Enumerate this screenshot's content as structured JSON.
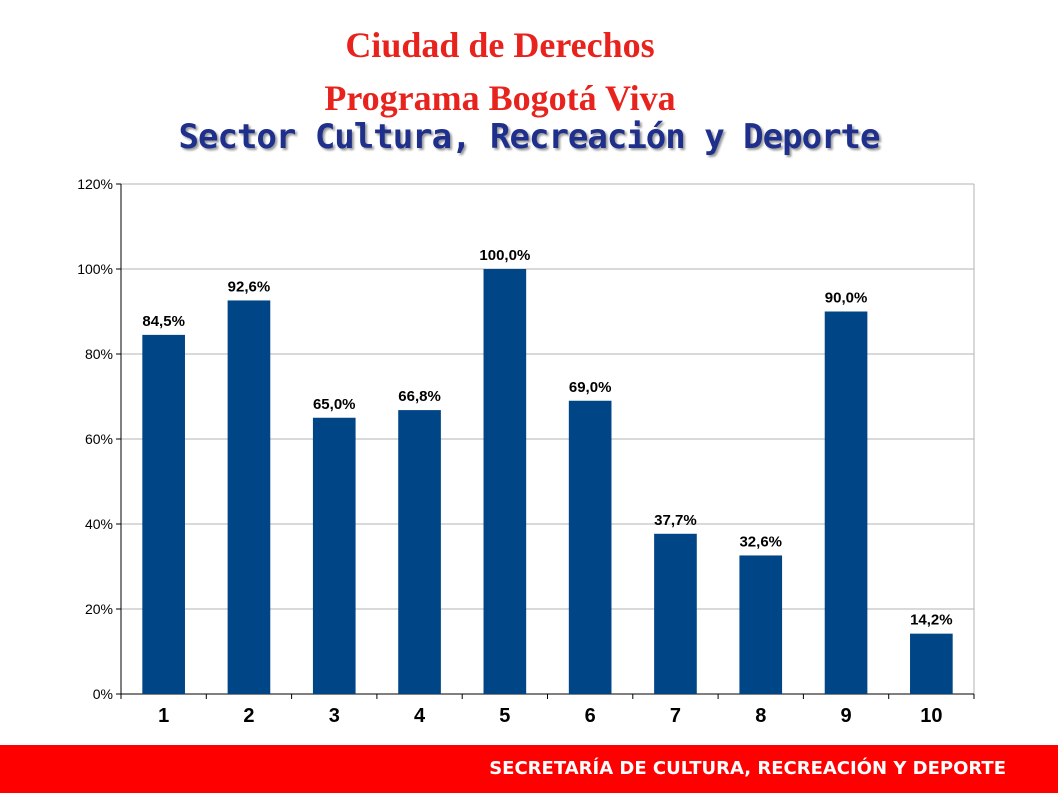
{
  "header": {
    "title_line1": "Ciudad de Derechos",
    "title_line2": "Programa Bogotá Viva",
    "subtitle": "Sector Cultura, Recreación y Deporte"
  },
  "footer": {
    "text": "SECRETARÍA DE CULTURA, RECREACIÓN Y DEPORTE"
  },
  "colors": {
    "bar": "#004586",
    "title": "#e8231d",
    "subtitle": "#1f2f8c",
    "footer_bg": "#ff0000"
  },
  "chart_data": {
    "type": "bar",
    "categories": [
      "1",
      "2",
      "3",
      "4",
      "5",
      "6",
      "7",
      "8",
      "9",
      "10"
    ],
    "values": [
      84.5,
      92.6,
      65.0,
      66.8,
      100.0,
      69.0,
      37.7,
      32.6,
      90.0,
      14.2
    ],
    "value_labels": [
      "84,5%",
      "92,6%",
      "65,0%",
      "66,8%",
      "100,0%",
      "69,0%",
      "37,7%",
      "32,6%",
      "90,0%",
      "14,2%"
    ],
    "ylim": [
      0,
      120
    ],
    "yticks": [
      0,
      20,
      40,
      60,
      80,
      100,
      120
    ],
    "ytick_labels": [
      "0%",
      "20%",
      "40%",
      "60%",
      "80%",
      "100%",
      "120%"
    ],
    "grid": true,
    "legend": "none"
  }
}
